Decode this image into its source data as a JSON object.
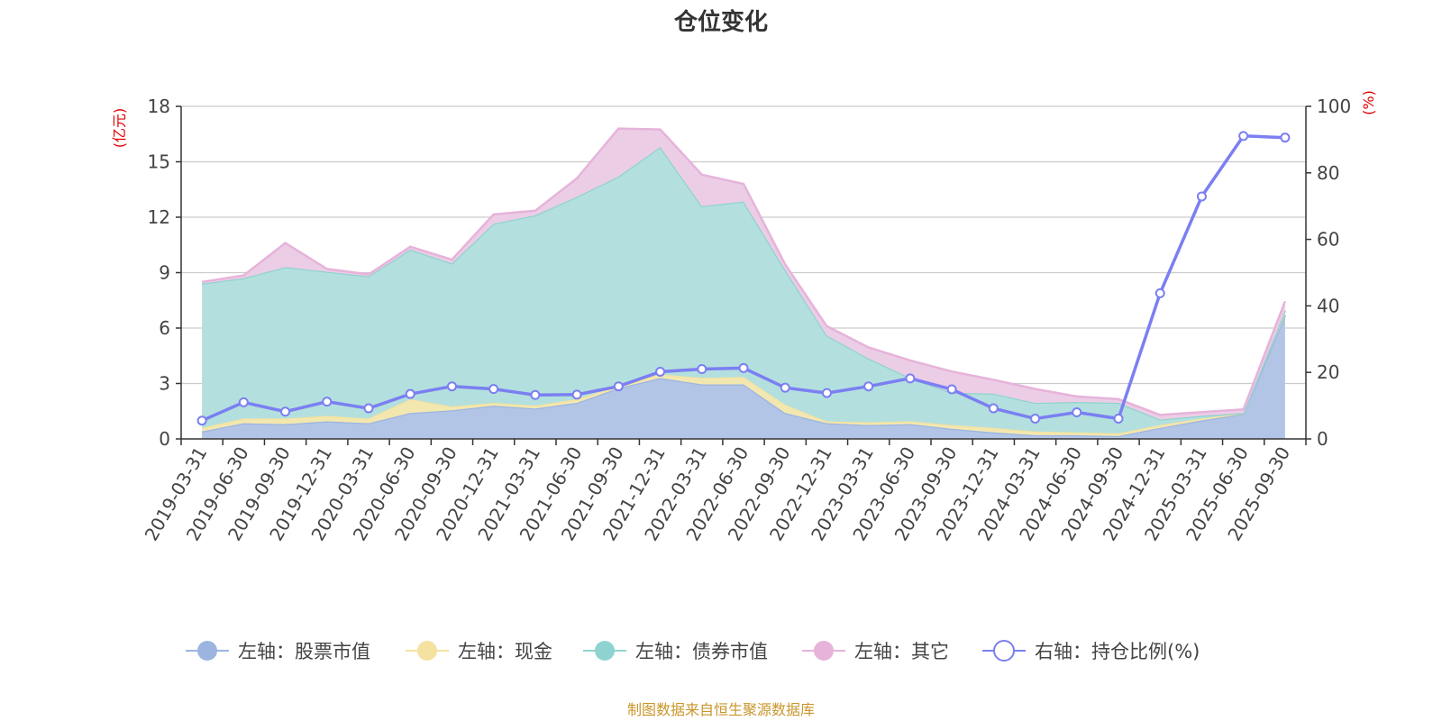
{
  "chart_data": {
    "type": "area",
    "title": "仓位变化",
    "source_note": "制图数据来自恒生聚源数据库",
    "left_axis": {
      "unit": "(亿元)",
      "ylim": [
        0,
        18
      ],
      "ticks": [
        0,
        3,
        6,
        9,
        12,
        15,
        18
      ]
    },
    "right_axis": {
      "unit": "(%)",
      "ylim": [
        0,
        100
      ],
      "ticks": [
        0,
        20,
        40,
        60,
        80,
        100
      ]
    },
    "x_tick_labels": [
      "2019-03-31",
      "2019-06-30",
      "2019-09-30",
      "2019-12-31",
      "2020-03-31",
      "2020-06-30",
      "2020-09-30",
      "2020-12-31",
      "2021-03-31",
      "2021-06-30",
      "2021-09-30",
      "2021-12-31",
      "2022-03-31",
      "2022-06-30",
      "2022-09-30",
      "2022-12-31",
      "2023-03-31",
      "2023-06-30",
      "2023-09-30",
      "2023-12-31",
      "2024-03-31",
      "2024-06-30",
      "2024-09-30",
      "2024-12-31",
      "2025-03-31",
      "2025-06-30",
      "2025-09-30"
    ],
    "categories": [
      "2019-03-31",
      "2019-06-30",
      "2019-09-30",
      "2019-12-31",
      "2020-03-31",
      "2020-06-30",
      "2020-09-30",
      "2020-12-31",
      "2021-03-31",
      "2021-06-30",
      "2021-09-30",
      "2021-12-31",
      "2022-03-31",
      "2022-06-30",
      "2022-09-30",
      "2022-12-31",
      "2023-03-31",
      "2023-06-30",
      "2023-09-30",
      "2023-12-31",
      "2024-03-31",
      "2024-06-30",
      "2024-09-30",
      "2024-12-31",
      "2025-03-31",
      "2025-06-30",
      "2025-09-30"
    ],
    "stacked_series": [
      {
        "name": "左轴：股票市值",
        "color": "#9bb5e0",
        "fill": "#b3c5e6",
        "values": [
          0.4,
          0.85,
          0.8,
          0.95,
          0.85,
          1.4,
          1.55,
          1.8,
          1.65,
          1.95,
          2.75,
          3.3,
          2.95,
          2.95,
          1.4,
          0.85,
          0.75,
          0.8,
          0.55,
          0.35,
          0.2,
          0.2,
          0.15,
          0.6,
          1.0,
          1.35,
          6.7
        ]
      },
      {
        "name": "左轴：现金",
        "color": "#f5e2a0",
        "fill": "#f3e7b0",
        "values": [
          0.2,
          0.25,
          0.3,
          0.3,
          0.25,
          0.75,
          0.2,
          0.15,
          0.15,
          0.2,
          0.1,
          0.2,
          0.35,
          0.4,
          0.45,
          0.1,
          0.15,
          0.15,
          0.2,
          0.25,
          0.2,
          0.15,
          0.15,
          0.15,
          0.1,
          0.05,
          0.25
        ]
      },
      {
        "name": "左轴：债券市值",
        "color": "#8fd3d0",
        "fill": "#b3e0de",
        "values": [
          7.8,
          7.6,
          8.2,
          7.8,
          7.7,
          8.1,
          7.75,
          9.7,
          10.3,
          10.95,
          11.35,
          12.3,
          9.3,
          9.5,
          7.3,
          4.65,
          3.45,
          2.35,
          1.75,
          1.85,
          1.55,
          1.65,
          1.65,
          0.3,
          0.15,
          0.0,
          0.0
        ]
      },
      {
        "name": "左轴：其它",
        "color": "#e6b3da",
        "fill": "#eccde6",
        "values": [
          0.1,
          0.15,
          1.3,
          0.15,
          0.1,
          0.15,
          0.2,
          0.5,
          0.25,
          1.0,
          2.6,
          0.95,
          1.7,
          0.95,
          0.3,
          0.5,
          0.6,
          0.95,
          1.15,
          0.75,
          0.75,
          0.3,
          0.2,
          0.25,
          0.2,
          0.2,
          0.5
        ]
      }
    ],
    "line_series": {
      "name": "右轴：持仓比例(%)",
      "color": "#7b7ff2",
      "values": [
        5.5,
        11.0,
        8.2,
        11.2,
        9.2,
        13.5,
        15.8,
        15.0,
        13.2,
        13.3,
        15.8,
        20.2,
        21.0,
        21.3,
        15.4,
        13.8,
        15.8,
        18.2,
        14.9,
        9.2,
        6.1,
        8.0,
        6.1,
        43.8,
        72.9,
        91.1,
        90.6
      ]
    }
  }
}
